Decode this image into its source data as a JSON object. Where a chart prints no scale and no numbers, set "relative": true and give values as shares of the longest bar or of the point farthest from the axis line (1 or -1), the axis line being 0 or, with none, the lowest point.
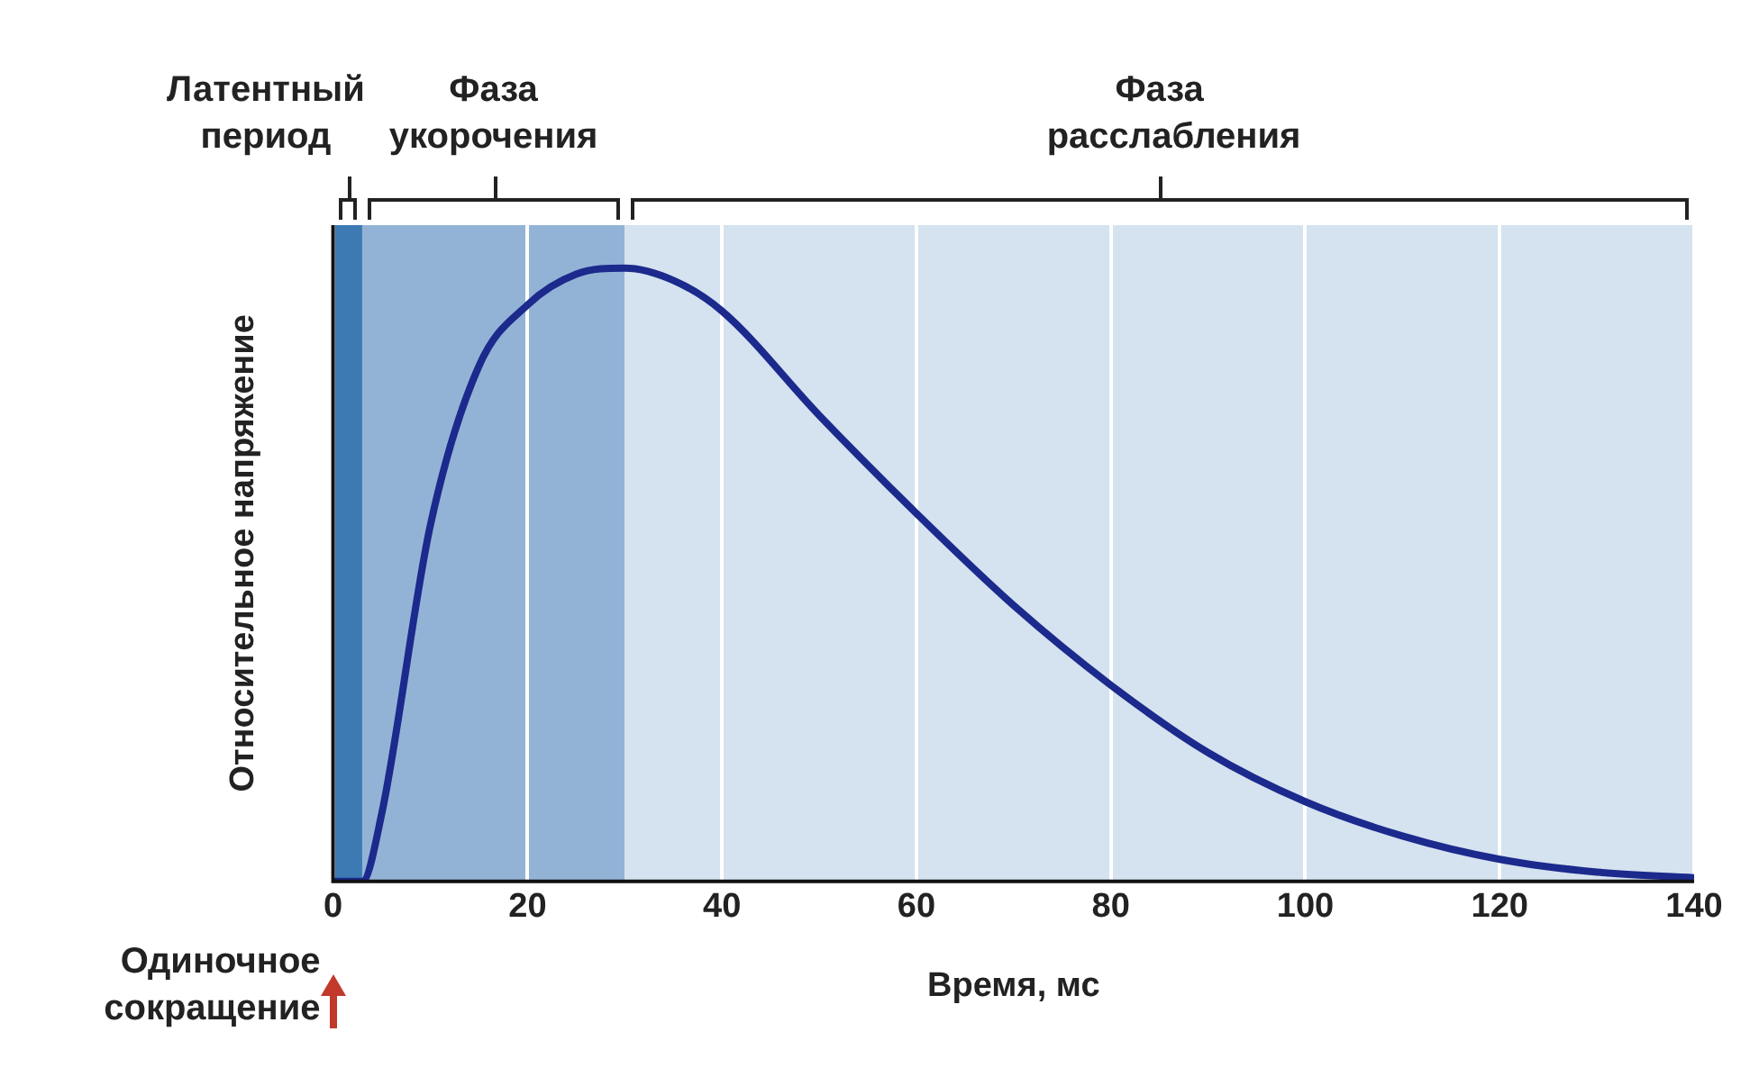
{
  "chart_data": {
    "type": "line",
    "relative": true,
    "xlabel": "Время, мс",
    "ylabel": "Относительное напряжение",
    "x": [
      0,
      3,
      5,
      10,
      15,
      20,
      25,
      30,
      35,
      40,
      50,
      60,
      70,
      80,
      90,
      100,
      110,
      120,
      130,
      140
    ],
    "series": [
      {
        "color": "#1b2a8c",
        "values": [
          0,
          0,
          0.11,
          0.58,
          0.84,
          0.94,
          0.99,
          1,
          0.98,
          0.93,
          0.76,
          0.6,
          0.45,
          0.32,
          0.21,
          0.13,
          0.074,
          0.036,
          0.015,
          0.006
        ]
      }
    ],
    "xlim": [
      0,
      140
    ],
    "xticks": [
      0,
      20,
      40,
      60,
      80,
      100,
      120,
      140
    ],
    "grid": "x",
    "legend": false,
    "marker": "none",
    "line_style": "solid",
    "bands": [
      {
        "axis": "x",
        "from": 0,
        "to": 3,
        "label": "Латентный период",
        "color": "#3d7ab3"
      },
      {
        "axis": "x",
        "from": 3,
        "to": 30,
        "label": "Фаза укорочения",
        "color": "#93b3d6"
      },
      {
        "axis": "x",
        "from": 30,
        "to": 140,
        "label": "Фаза расслабления",
        "color": "#d5e2ef"
      }
    ],
    "annotations": [
      "Одиночное сокращение"
    ]
  }
}
